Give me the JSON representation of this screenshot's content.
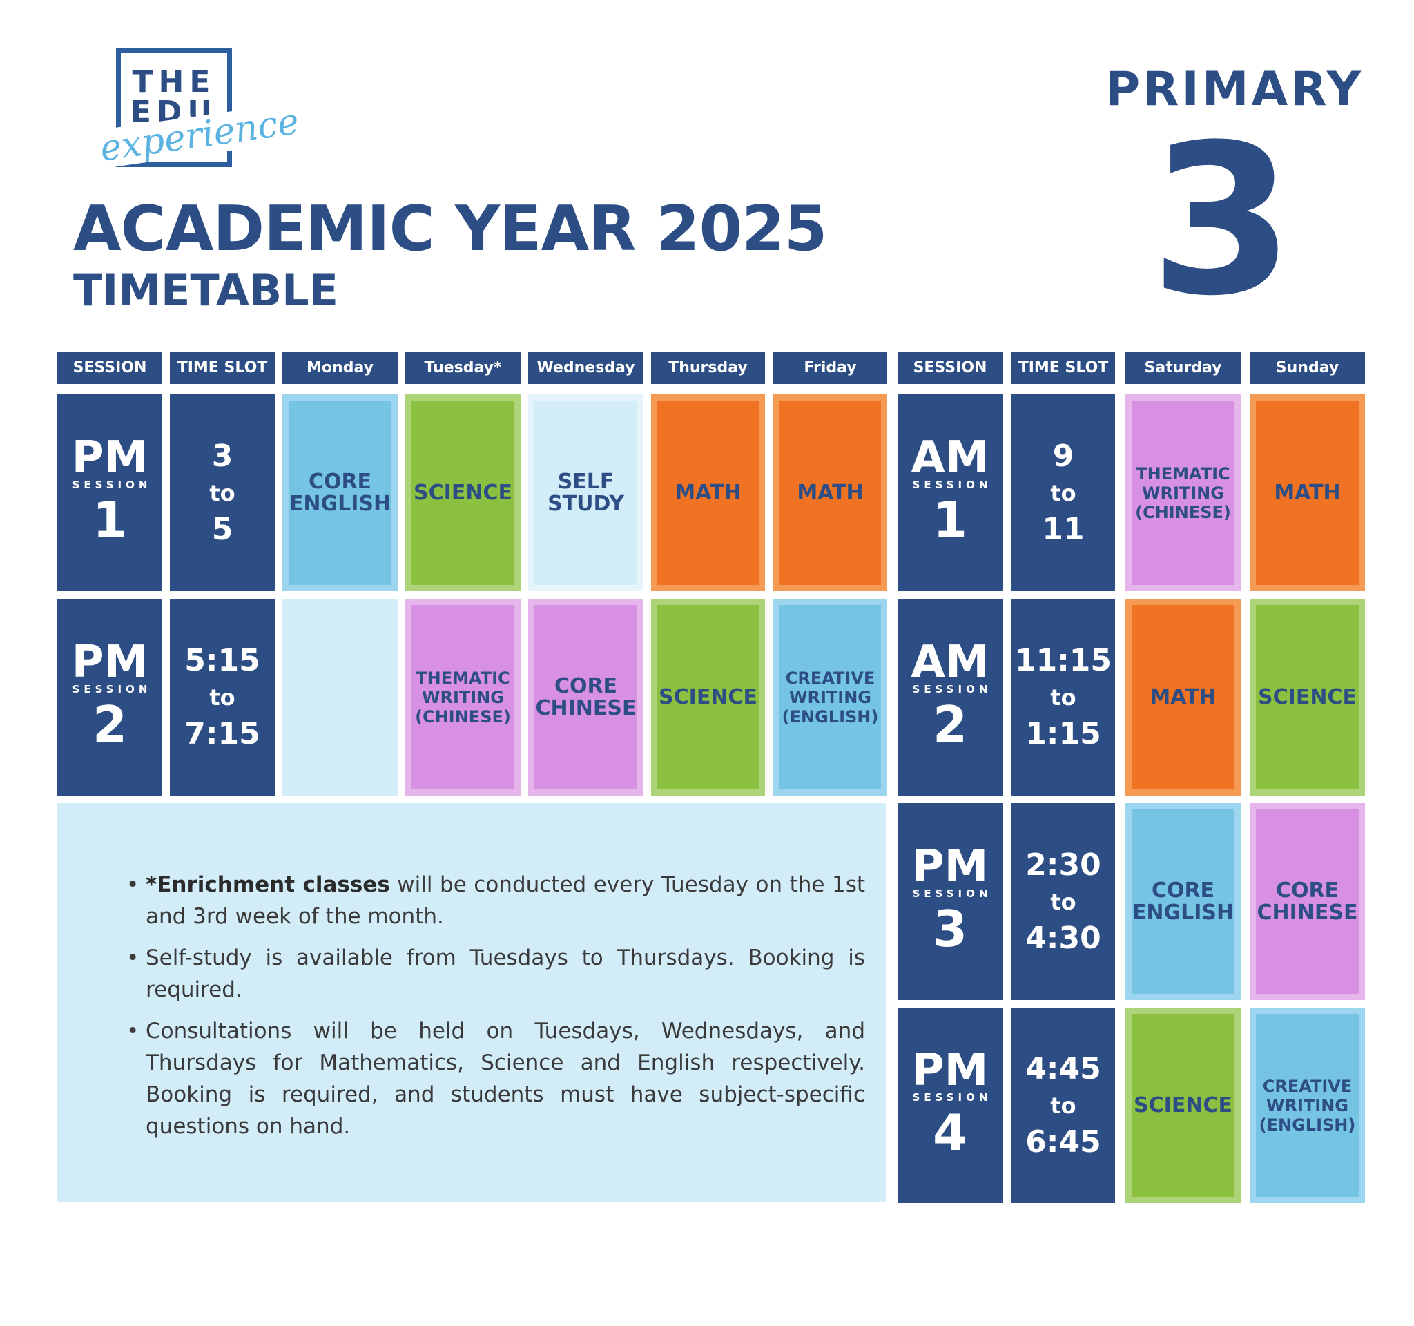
{
  "logo": {
    "line1": "THE",
    "line2": "EDU",
    "script": "experience"
  },
  "title": "ACADEMIC YEAR 2025",
  "subtitle": "TIMETABLE",
  "level": {
    "label": "PRIMARY",
    "number": "3"
  },
  "headers": {
    "session": "SESSION",
    "time_slot": "TIME SLOT",
    "monday": "Monday",
    "tuesday": "Tuesday*",
    "wednesday": "Wednesday",
    "thursday": "Thursday",
    "friday": "Friday",
    "session2": "SESSION",
    "time_slot2": "TIME SLOT",
    "saturday": "Saturday",
    "sunday": "Sunday"
  },
  "weekday_sessions": [
    {
      "ap": "PM",
      "word": "SESSION",
      "num": "1",
      "time_from": "3",
      "time_to_word": "to",
      "time_to": "5"
    },
    {
      "ap": "PM",
      "word": "SESSION",
      "num": "2",
      "time_from": "5:15",
      "time_to_word": "to",
      "time_to": "7:15"
    }
  ],
  "weekend_sessions": [
    {
      "ap": "AM",
      "word": "SESSION",
      "num": "1",
      "time_from": "9",
      "time_to_word": "to",
      "time_to": "11"
    },
    {
      "ap": "AM",
      "word": "SESSION",
      "num": "2",
      "time_from": "11:15",
      "time_to_word": "to",
      "time_to": "1:15"
    },
    {
      "ap": "PM",
      "word": "SESSION",
      "num": "3",
      "time_from": "2:30",
      "time_to_word": "to",
      "time_to": "4:30"
    },
    {
      "ap": "PM",
      "word": "SESSION",
      "num": "4",
      "time_from": "4:45",
      "time_to_word": "to",
      "time_to": "6:45"
    }
  ],
  "weekday_grid": {
    "row1": {
      "monday": [
        "CORE",
        "ENGLISH"
      ],
      "tuesday": [
        "SCIENCE"
      ],
      "wednesday": [
        "SELF",
        "STUDY"
      ],
      "thursday": [
        "MATH"
      ],
      "friday": [
        "MATH"
      ]
    },
    "row2": {
      "tuesday": [
        "THEMATIC",
        "WRITING",
        "(CHINESE)"
      ],
      "wednesday": [
        "CORE",
        "CHINESE"
      ],
      "thursday": [
        "SCIENCE"
      ],
      "friday": [
        "CREATIVE",
        "WRITING",
        "(ENGLISH)"
      ]
    }
  },
  "weekend_grid": {
    "row1": {
      "saturday": [
        "THEMATIC",
        "WRITING",
        "(CHINESE)"
      ],
      "sunday": [
        "MATH"
      ]
    },
    "row2": {
      "saturday": [
        "MATH"
      ],
      "sunday": [
        "SCIENCE"
      ]
    },
    "row3": {
      "saturday": [
        "CORE",
        "ENGLISH"
      ],
      "sunday": [
        "CORE",
        "CHINESE"
      ]
    },
    "row4": {
      "saturday": [
        "SCIENCE"
      ],
      "sunday": [
        "CREATIVE",
        "WRITING",
        "(ENGLISH)"
      ]
    }
  },
  "colors": {
    "navy": "#2d4e85",
    "blue": "#75c4e4",
    "green": "#8bc040",
    "light": "#d2ecf8",
    "orange": "#f07323",
    "purple": "#d890e2"
  },
  "notes": {
    "n1_bold": "*Enrichment classes",
    "n1_rest": " will be conducted every Tuesday on the 1st and 3rd week of the month.",
    "n2": "Self-study is available from Tuesdays to Thursdays. Booking is required.",
    "n3": "Consultations will be held on Tuesdays, Wednesdays, and Thursdays for Mathematics, Science and English respectively. Booking is required, and students must have subject-specific questions on hand."
  }
}
